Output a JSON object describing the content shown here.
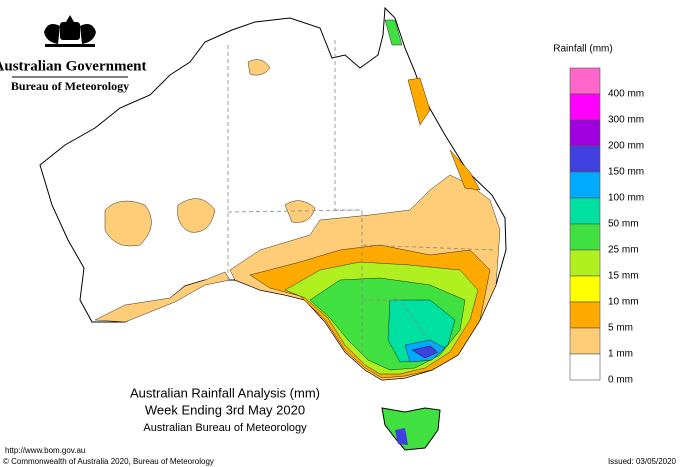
{
  "header": {
    "organisation": "Australian Government",
    "agency": "Bureau of Meteorology"
  },
  "legend": {
    "title": "Rainfall (mm)",
    "colors": [
      "#ff66cc",
      "#ff00ff",
      "#a000e0",
      "#4040e0",
      "#00aaff",
      "#00e0a0",
      "#40e040",
      "#b0f020",
      "#ffff00",
      "#ffaa00",
      "#ffcc77",
      "#ffffff"
    ],
    "labels": [
      "400 mm",
      "300 mm",
      "200 mm",
      "150 mm",
      "100 mm",
      "50 mm",
      "25 mm",
      "15 mm",
      "10 mm",
      "5 mm",
      "1 mm",
      "0 mm"
    ]
  },
  "title": {
    "line1": "Australian Rainfall Analysis (mm)",
    "line2": "Week Ending 3rd May 2020",
    "line3": "Australian Bureau of Meteorology"
  },
  "footer": {
    "url": "http://www.bom.gov.au",
    "copyright": "© Commonwealth of Australia 2020, Bureau of Meteorology",
    "issued": "Issued: 03/05/2020"
  }
}
